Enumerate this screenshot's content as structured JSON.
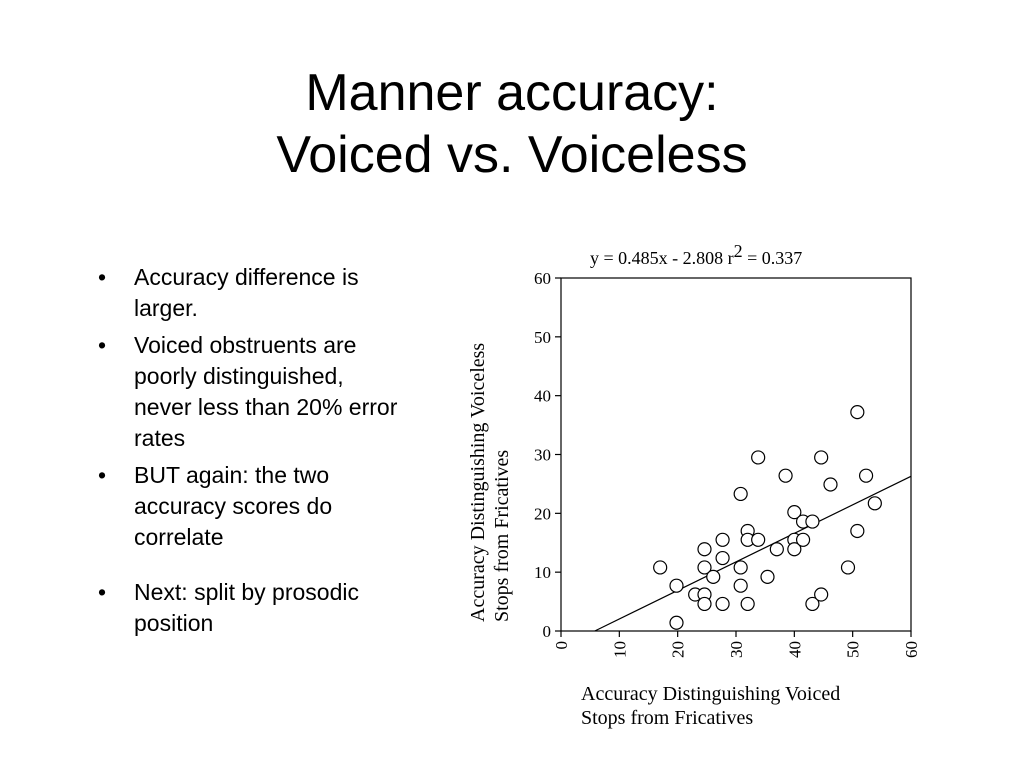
{
  "slide": {
    "title_line1": "Manner accuracy:",
    "title_line2": "Voiced vs. Voiceless",
    "bullets": [
      "Accuracy difference is larger.",
      "Voiced obstruents are poorly distinguished, never less than 20% error rates",
      "BUT again:  the two accuracy scores do correlate",
      "Next: split by prosodic position"
    ],
    "bullet_glyph": "•"
  },
  "chart_data": {
    "type": "scatter",
    "equation_prefix": "y = 0.485x - 2.808   r",
    "equation_sup": "2",
    "equation_suffix": " = 0.337",
    "regression": {
      "slope": 0.485,
      "intercept": -2.808
    },
    "xlabel_line1": "Accuracy Distinguishing Voiced",
    "xlabel_line2": "Stops from Fricatives",
    "ylabel_line1": "Accuracy Distinguishing Voiceless",
    "ylabel_line2": "Stops from Fricatives",
    "xlim": [
      0,
      60
    ],
    "ylim": [
      0,
      60
    ],
    "xticks": [
      0,
      10,
      20,
      30,
      40,
      50,
      60
    ],
    "yticks": [
      0,
      10,
      20,
      30,
      40,
      50,
      60
    ],
    "grid": false,
    "points": [
      {
        "x": 17.0,
        "y": 10.8
      },
      {
        "x": 19.8,
        "y": 7.7
      },
      {
        "x": 19.8,
        "y": 1.4
      },
      {
        "x": 23.0,
        "y": 6.2
      },
      {
        "x": 24.6,
        "y": 13.9
      },
      {
        "x": 24.6,
        "y": 10.8
      },
      {
        "x": 24.6,
        "y": 6.2
      },
      {
        "x": 24.6,
        "y": 4.6
      },
      {
        "x": 26.1,
        "y": 9.2
      },
      {
        "x": 27.7,
        "y": 15.5
      },
      {
        "x": 27.7,
        "y": 12.4
      },
      {
        "x": 27.7,
        "y": 4.6
      },
      {
        "x": 30.8,
        "y": 23.3
      },
      {
        "x": 30.8,
        "y": 10.8
      },
      {
        "x": 30.8,
        "y": 7.7
      },
      {
        "x": 32.0,
        "y": 17.0
      },
      {
        "x": 32.0,
        "y": 15.5
      },
      {
        "x": 32.0,
        "y": 4.6
      },
      {
        "x": 33.8,
        "y": 29.5
      },
      {
        "x": 33.8,
        "y": 15.5
      },
      {
        "x": 35.4,
        "y": 9.2
      },
      {
        "x": 37.0,
        "y": 13.9
      },
      {
        "x": 38.5,
        "y": 26.4
      },
      {
        "x": 40.0,
        "y": 20.2
      },
      {
        "x": 40.0,
        "y": 15.5
      },
      {
        "x": 40.0,
        "y": 13.9
      },
      {
        "x": 41.5,
        "y": 18.6
      },
      {
        "x": 41.5,
        "y": 15.5
      },
      {
        "x": 43.1,
        "y": 18.6
      },
      {
        "x": 43.1,
        "y": 4.6
      },
      {
        "x": 44.6,
        "y": 29.5
      },
      {
        "x": 44.6,
        "y": 6.2
      },
      {
        "x": 46.2,
        "y": 24.9
      },
      {
        "x": 49.2,
        "y": 10.8
      },
      {
        "x": 50.8,
        "y": 37.2
      },
      {
        "x": 50.8,
        "y": 17.0
      },
      {
        "x": 52.3,
        "y": 26.4
      },
      {
        "x": 53.8,
        "y": 21.7
      }
    ]
  }
}
